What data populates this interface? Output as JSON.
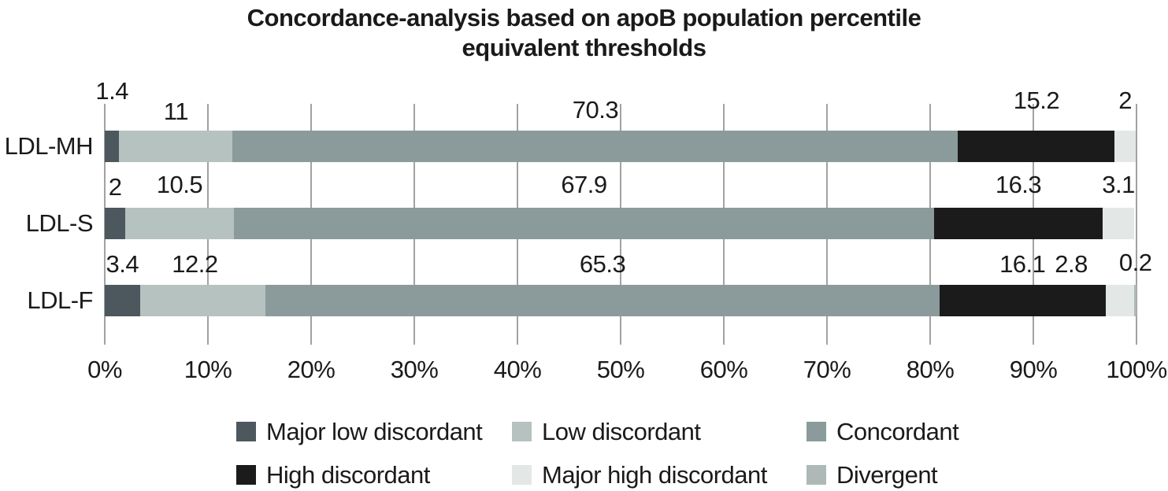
{
  "title": {
    "line1": "Concordance-analysis based on apoB population percentile",
    "line2": "equivalent thresholds"
  },
  "chart_data": {
    "type": "bar",
    "orientation": "horizontal",
    "stacked": true,
    "title": "Concordance-analysis based on apoB population percentile equivalent thresholds",
    "categories": [
      "LDL-MH",
      "LDL-S",
      "LDL-F"
    ],
    "series": [
      {
        "name": "Major low discordant",
        "color": "#4c585d",
        "values": [
          1.4,
          2,
          3.4
        ]
      },
      {
        "name": "Low discordant",
        "color": "#b6c2c0",
        "values": [
          11,
          10.5,
          12.2
        ]
      },
      {
        "name": "Concordant",
        "color": "#8b9b9b",
        "values": [
          70.3,
          67.9,
          65.3
        ]
      },
      {
        "name": "High discordant",
        "color": "#1b1b1b",
        "values": [
          15.2,
          16.3,
          16.1
        ]
      },
      {
        "name": "Major high discordant",
        "color": "#e3e7e6",
        "values": [
          2,
          3.1,
          2.8
        ]
      },
      {
        "name": "Divergent",
        "color": "#aeb9b7",
        "values": [
          null,
          null,
          0.2
        ]
      }
    ],
    "x_ticks": [
      "0%",
      "10%",
      "20%",
      "30%",
      "40%",
      "50%",
      "60%",
      "70%",
      "80%",
      "90%",
      "100%"
    ],
    "xlim": [
      0,
      100
    ],
    "grid": true,
    "legend_position": "bottom",
    "legend_rows": [
      [
        0,
        1,
        2
      ],
      [
        3,
        4,
        5
      ]
    ]
  },
  "colors": {
    "background": "#ffffff",
    "gridline": "#a2a2a2",
    "text": "#1a1a1a"
  }
}
